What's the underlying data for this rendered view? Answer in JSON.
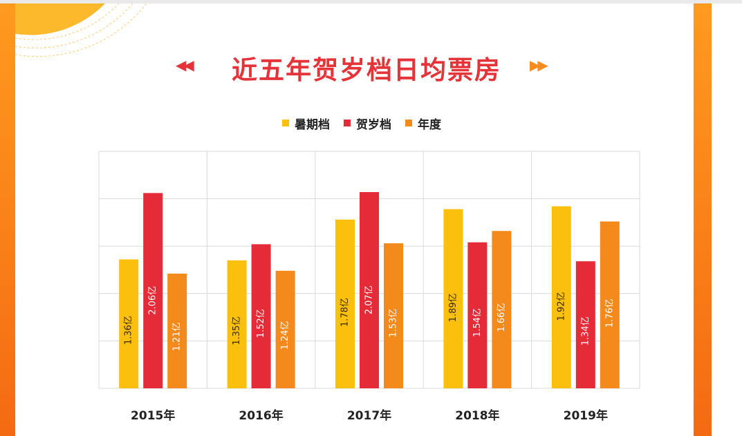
{
  "title": "近五年贺岁档日均票房",
  "arrows": {
    "left": "◀◀",
    "right": "▶▶"
  },
  "colors": {
    "accent_orange": "#f7861c",
    "title_red": "#e4343a",
    "grid": "#d9d9d9"
  },
  "legend": [
    {
      "label": "暑期档",
      "color": "#fbbf0e"
    },
    {
      "label": "贺岁档",
      "color": "#e52b38"
    },
    {
      "label": "年度",
      "color": "#f48a1c"
    }
  ],
  "chart_data": {
    "type": "bar",
    "title": "近五年贺岁档日均票房",
    "categories": [
      "2015年",
      "2016年",
      "2017年",
      "2018年",
      "2019年"
    ],
    "series": [
      {
        "name": "暑期档",
        "values": [
          1.36,
          1.35,
          1.78,
          1.89,
          1.92
        ],
        "labels": [
          "1.36亿",
          "1.35亿",
          "1.78亿",
          "1.89亿",
          "1.92亿"
        ],
        "color": "#fbbf0e"
      },
      {
        "name": "贺岁档",
        "values": [
          2.06,
          1.52,
          2.07,
          1.54,
          1.34
        ],
        "labels": [
          "2.06亿",
          "1.52亿",
          "2.07亿",
          "1.54亿",
          "1.34亿"
        ],
        "color": "#e52b38"
      },
      {
        "name": "年度",
        "values": [
          1.21,
          1.24,
          1.53,
          1.66,
          1.76
        ],
        "labels": [
          "1.21亿",
          "1.24亿",
          "1.53亿",
          "1.66亿",
          "1.76亿"
        ],
        "color": "#f48a1c"
      }
    ],
    "ylim": [
      0,
      2.5
    ],
    "grid": true,
    "legend_position": "top",
    "xlabel": "",
    "ylabel": "",
    "data_label_orientation": "vertical"
  }
}
